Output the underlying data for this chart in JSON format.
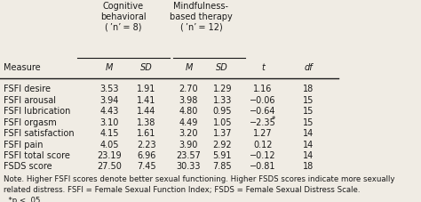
{
  "header1": "Cognitive\nbehavioral\n(’n’ = 8)",
  "header2": "Mindfulness-\nbased therapy\n(’n’ = 12)",
  "col_headers": [
    "Measure",
    "M",
    "SD",
    "M",
    "SD",
    "t",
    "df"
  ],
  "col1_label": "Cognitive\nbehavioral\n(n = 8)",
  "col2_label": "Mindfulness-\nbased therapy\n(n = 12)",
  "rows": [
    [
      "FSFI desire",
      "3.53",
      "1.91",
      "2.70",
      "1.29",
      "1.16",
      "18"
    ],
    [
      "FSFI arousal",
      "3.94",
      "1.41",
      "3.98",
      "1.33",
      "−0.06",
      "15"
    ],
    [
      "FSFI lubrication",
      "4.43",
      "1.44",
      "4.80",
      "0.95",
      "−0.64",
      "15"
    ],
    [
      "FSFI orgasm",
      "3.10",
      "1.38",
      "4.49",
      "1.05",
      "−2.35*",
      "15"
    ],
    [
      "FSFI satisfaction",
      "4.15",
      "1.61",
      "3.20",
      "1.37",
      "1.27",
      "14"
    ],
    [
      "FSFI pain",
      "4.05",
      "2.23",
      "3.90",
      "2.92",
      "0.12",
      "14"
    ],
    [
      "FSFI total score",
      "23.19",
      "6.96",
      "23.57",
      "5.91",
      "−0.12",
      "14"
    ],
    [
      "FSDS score",
      "27.50",
      "7.45",
      "30.33",
      "7.85",
      "−0.81",
      "18"
    ]
  ],
  "note": "Note. Higher FSFI scores denote better sexual functioning. Higher FSDS scores indicate more sexually\nrelated distress. FSFI = Female Sexual Function Index; FSDS = Female Sexual Distress Scale.\n  *p < .05.",
  "bg_color": "#f0ece4",
  "text_color": "#1a1a1a"
}
